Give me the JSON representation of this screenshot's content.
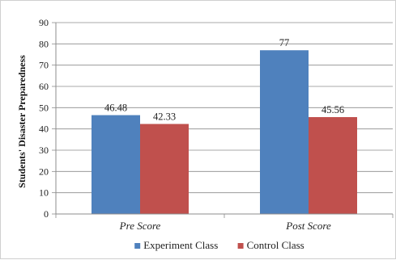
{
  "chart_data": {
    "type": "bar",
    "categories": [
      "Pre Score",
      "Post Score"
    ],
    "series": [
      {
        "name": "Experiment Class",
        "values": [
          46.48,
          77
        ],
        "labels": [
          "46.48",
          "77"
        ],
        "color": "#4f81bd"
      },
      {
        "name": "Control Class",
        "values": [
          42.33,
          45.56
        ],
        "labels": [
          "42.33",
          "45.56"
        ],
        "color": "#c0504d"
      }
    ],
    "title": "",
    "xlabel": "",
    "ylabel": "Students' Disaster Preparedness",
    "ylim": [
      0,
      90
    ],
    "yticks": [
      0,
      10,
      20,
      30,
      40,
      50,
      60,
      70,
      80,
      90
    ],
    "grid": true,
    "legend_position": "bottom"
  }
}
